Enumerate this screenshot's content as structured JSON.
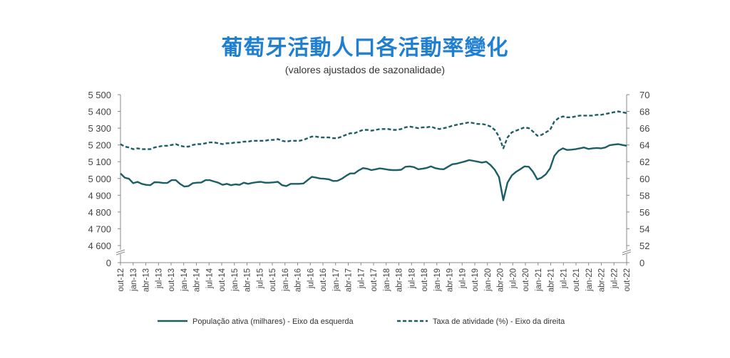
{
  "title": "葡萄牙活動人口各活動率變化",
  "subtitle": "(valores ajustados de sazonalidade)",
  "colors": {
    "series": "#1b5e64",
    "axis": "#888888"
  },
  "chart_data": {
    "type": "line",
    "x_tick_labels": [
      "out-12",
      "jan-13",
      "abr-13",
      "jul-13",
      "out-13",
      "jan-14",
      "abr-14",
      "jul-14",
      "out-14",
      "jan-15",
      "abr-15",
      "jul-15",
      "out-15",
      "jan-16",
      "abr-16",
      "jul-16",
      "out-16",
      "jan-17",
      "abr-17",
      "jul-17",
      "out-17",
      "jan-18",
      "abr-18",
      "jul-18",
      "out-18",
      "jan-19",
      "abr-19",
      "jul-19",
      "out-19",
      "jan-20",
      "abr-20",
      "jul-20",
      "out-20",
      "jan-21",
      "abr-21",
      "jul-21",
      "out-21",
      "jan-22",
      "abr-22",
      "jul-22",
      "out-22"
    ],
    "y_left": {
      "ticks": [
        "5 500",
        "5 400",
        "5 300",
        "5 200",
        "5 100",
        "5 000",
        "4 900",
        "4 800",
        "4 700",
        "4 600",
        "0"
      ],
      "range": [
        4600,
        5500
      ],
      "axis_break": true
    },
    "y_right": {
      "ticks": [
        "70",
        "68",
        "66",
        "64",
        "62",
        "60",
        "58",
        "56",
        "54",
        "52",
        "0"
      ],
      "range": [
        52,
        70
      ],
      "axis_break": true
    },
    "series": [
      {
        "name": "População ativa (milhares) - Eixo da esquerda",
        "style": "solid",
        "axis": "left",
        "values": [
          5030,
          5005,
          4998,
          4972,
          4980,
          4968,
          4962,
          4960,
          4978,
          4977,
          4973,
          4973,
          4990,
          4990,
          4968,
          4952,
          4955,
          4972,
          4975,
          4976,
          4990,
          4990,
          4982,
          4975,
          4962,
          4968,
          4960,
          4965,
          4962,
          4975,
          4968,
          4974,
          4978,
          4980,
          4975,
          4975,
          4977,
          4980,
          4960,
          4955,
          4968,
          4968,
          4968,
          4970,
          4990,
          5010,
          5005,
          5000,
          4998,
          4995,
          4985,
          4986,
          4998,
          5015,
          5030,
          5030,
          5048,
          5062,
          5058,
          5050,
          5055,
          5060,
          5057,
          5052,
          5050,
          5050,
          5052,
          5070,
          5072,
          5068,
          5055,
          5058,
          5063,
          5072,
          5062,
          5057,
          5055,
          5070,
          5085,
          5088,
          5095,
          5102,
          5110,
          5105,
          5100,
          5095,
          5100,
          5080,
          5052,
          5008,
          4870,
          4975,
          5018,
          5040,
          5055,
          5072,
          5070,
          5040,
          4995,
          5005,
          5025,
          5060,
          5135,
          5165,
          5180,
          5170,
          5172,
          5175,
          5180,
          5185,
          5176,
          5180,
          5182,
          5180,
          5185,
          5198,
          5202,
          5205,
          5200,
          5195
        ]
      },
      {
        "name": "Taxa de atividade (%) - Eixo da direita",
        "style": "dashed",
        "axis": "right",
        "values": [
          64.1,
          63.8,
          63.7,
          63.5,
          63.6,
          63.5,
          63.5,
          63.5,
          63.7,
          63.8,
          63.9,
          63.9,
          64.0,
          64.1,
          63.9,
          63.8,
          63.8,
          64.0,
          64.1,
          64.1,
          64.2,
          64.3,
          64.3,
          64.2,
          64.1,
          64.2,
          64.2,
          64.3,
          64.3,
          64.4,
          64.4,
          64.5,
          64.5,
          64.5,
          64.5,
          64.6,
          64.6,
          64.7,
          64.5,
          64.4,
          64.5,
          64.5,
          64.5,
          64.6,
          64.8,
          65.0,
          65.0,
          64.9,
          64.9,
          64.9,
          64.8,
          64.8,
          65.0,
          65.2,
          65.4,
          65.4,
          65.6,
          65.8,
          65.8,
          65.7,
          65.8,
          65.9,
          65.9,
          65.9,
          65.8,
          65.8,
          65.9,
          66.1,
          66.2,
          66.1,
          66.0,
          66.1,
          66.1,
          66.2,
          66.0,
          65.9,
          66.0,
          66.1,
          66.3,
          66.4,
          66.5,
          66.6,
          66.7,
          66.6,
          66.5,
          66.5,
          66.4,
          66.2,
          65.8,
          65.0,
          63.6,
          64.9,
          65.5,
          65.7,
          65.9,
          66.1,
          66.0,
          65.6,
          65.1,
          65.2,
          65.5,
          65.8,
          66.8,
          67.2,
          67.4,
          67.3,
          67.3,
          67.4,
          67.5,
          67.5,
          67.5,
          67.5,
          67.6,
          67.6,
          67.7,
          67.8,
          67.9,
          68.0,
          67.9,
          67.8
        ]
      }
    ],
    "title": "葡萄牙活動人口各活動率變化",
    "subtitle": "(valores ajustados de sazonalidade)",
    "grid": false,
    "legend_position": "bottom"
  }
}
